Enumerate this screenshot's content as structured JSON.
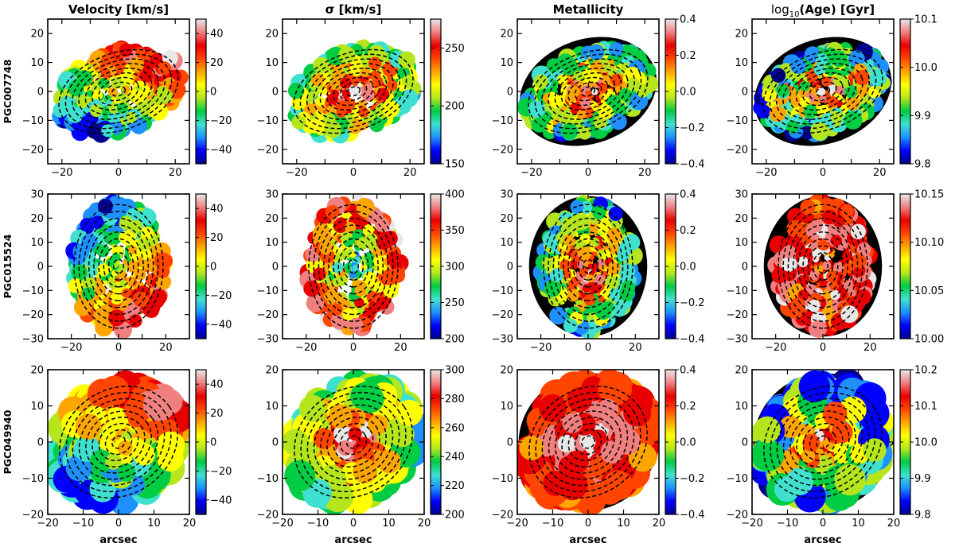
{
  "chart_data": {
    "type": "heatmap",
    "columns": [
      {
        "title": "Velocity [km/s]"
      },
      {
        "title": "σ [km/s]"
      },
      {
        "title": "Metallicity"
      },
      {
        "title": "log10(Age) [Gyr]",
        "title_main": "log",
        "title_sub": "10",
        "title_rest": "(Age) [Gyr]"
      }
    ],
    "xlabel": "arcsec",
    "rows": [
      {
        "galaxy": "PGC007748",
        "axis_range": [
          -25,
          25
        ],
        "ticks": [
          -20,
          -10,
          0,
          10,
          20
        ],
        "x_tick_labels": [
          "−20",
          "0",
          "20"
        ],
        "x_tick_values": [
          -20,
          0,
          20
        ],
        "y_tick_labels": [
          "−20",
          "−10",
          "0",
          "10",
          "20"
        ],
        "ellipse_axis_ratio": 0.62,
        "ellipse_pa_deg": -20,
        "panels": [
          {
            "quantity": "velocity",
            "cbar_range": [
              -50,
              50
            ],
            "cbar_ticks": [
              "40",
              "20",
              "0",
              "−20",
              "−40"
            ],
            "cbar_tick_values": [
              40,
              20,
              0,
              -20,
              -40
            ]
          },
          {
            "quantity": "sigma",
            "cbar_range": [
              150,
              275
            ],
            "cbar_ticks": [
              "250",
              "200",
              "150"
            ],
            "cbar_tick_values": [
              250,
              200,
              150
            ]
          },
          {
            "quantity": "metallicity",
            "cbar_range": [
              -0.4,
              0.4
            ],
            "cbar_ticks": [
              "0.4",
              "0.2",
              "0.0",
              "−0.2",
              "−0.4"
            ],
            "cbar_tick_values": [
              0.4,
              0.2,
              0.0,
              -0.2,
              -0.4
            ]
          },
          {
            "quantity": "log_age",
            "cbar_range": [
              9.8,
              10.1
            ],
            "cbar_ticks": [
              "10.1",
              "10.0",
              "9.9",
              "9.8"
            ],
            "cbar_tick_values": [
              10.1,
              10.0,
              9.9,
              9.8
            ]
          }
        ]
      },
      {
        "galaxy": "PGC015524",
        "axis_range": [
          -30,
          30
        ],
        "ticks": [
          -30,
          -20,
          -10,
          0,
          10,
          20,
          30
        ],
        "x_tick_labels": [
          "−20",
          "0",
          "20"
        ],
        "x_tick_values": [
          -20,
          0,
          20
        ],
        "y_tick_labels": [
          "−30",
          "−20",
          "−10",
          "0",
          "10",
          "20",
          "30"
        ],
        "ellipse_axis_ratio": 0.72,
        "ellipse_pa_deg": 90,
        "panels": [
          {
            "quantity": "velocity",
            "cbar_range": [
              -50,
              50
            ],
            "cbar_ticks": [
              "40",
              "20",
              "0",
              "−20",
              "−40"
            ],
            "cbar_tick_values": [
              40,
              20,
              0,
              -20,
              -40
            ]
          },
          {
            "quantity": "sigma",
            "cbar_range": [
              200,
              400
            ],
            "cbar_ticks": [
              "400",
              "350",
              "300",
              "250",
              "200"
            ],
            "cbar_tick_values": [
              400,
              350,
              300,
              250,
              200
            ]
          },
          {
            "quantity": "metallicity",
            "cbar_range": [
              -0.4,
              0.4
            ],
            "cbar_ticks": [
              "0.4",
              "0.2",
              "0.0",
              "−0.2",
              "−0.4"
            ],
            "cbar_tick_values": [
              0.4,
              0.2,
              0.0,
              -0.2,
              -0.4
            ]
          },
          {
            "quantity": "log_age",
            "cbar_range": [
              10.0,
              10.15
            ],
            "cbar_ticks": [
              "10.15",
              "10.10",
              "10.05",
              "10.00"
            ],
            "cbar_tick_values": [
              10.15,
              10.1,
              10.05,
              10.0
            ]
          }
        ]
      },
      {
        "galaxy": "PGC049940",
        "axis_range": [
          -20,
          20
        ],
        "ticks": [
          -20,
          -10,
          0,
          10,
          20
        ],
        "x_tick_labels": [
          "−20",
          "−10",
          "0",
          "10",
          "20"
        ],
        "x_tick_values": [
          -20,
          -10,
          0,
          10,
          20
        ],
        "y_tick_labels": [
          "−20",
          "−10",
          "0",
          "10",
          "20"
        ],
        "ellipse_axis_ratio": 0.85,
        "ellipse_pa_deg": -35,
        "panels": [
          {
            "quantity": "velocity",
            "cbar_range": [
              -50,
              50
            ],
            "cbar_ticks": [
              "40",
              "20",
              "0",
              "−20",
              "−40"
            ],
            "cbar_tick_values": [
              40,
              20,
              0,
              -20,
              -40
            ]
          },
          {
            "quantity": "sigma",
            "cbar_range": [
              200,
              300
            ],
            "cbar_ticks": [
              "300",
              "280",
              "260",
              "240",
              "220",
              "200"
            ],
            "cbar_tick_values": [
              300,
              280,
              260,
              240,
              220,
              200
            ]
          },
          {
            "quantity": "metallicity",
            "cbar_range": [
              -0.4,
              0.4
            ],
            "cbar_ticks": [
              "0.4",
              "0.2",
              "0.0",
              "−0.2",
              "−0.4"
            ],
            "cbar_tick_values": [
              0.4,
              0.2,
              0.0,
              -0.2,
              -0.4
            ]
          },
          {
            "quantity": "log_age",
            "cbar_range": [
              9.8,
              10.2
            ],
            "cbar_ticks": [
              "10.2",
              "10.1",
              "10.0",
              "9.9",
              "9.8"
            ],
            "cbar_tick_values": [
              10.2,
              10.1,
              10.0,
              9.9,
              9.8
            ]
          }
        ]
      }
    ],
    "colormap": [
      "#00008b",
      "#0000ff",
      "#1e90ff",
      "#40e0d0",
      "#00cc44",
      "#b5e61d",
      "#ffff00",
      "#ffa500",
      "#ff4500",
      "#e80000",
      "#f08080",
      "#e8e8e8"
    ]
  }
}
